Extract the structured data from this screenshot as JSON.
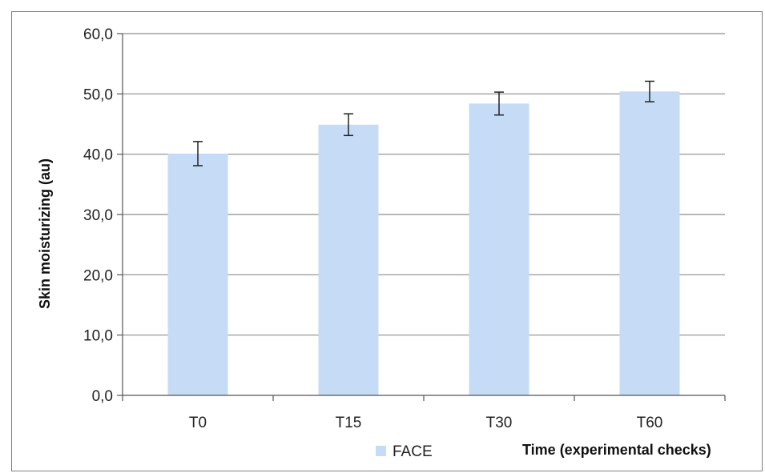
{
  "chart_data": {
    "type": "bar",
    "categories": [
      "T0",
      "T15",
      "T30",
      "T60"
    ],
    "series": [
      {
        "name": "FACE",
        "values": [
          40.1,
          44.9,
          48.4,
          50.4
        ],
        "error": [
          2.0,
          1.8,
          1.9,
          1.7
        ],
        "color": "#c6dbf5"
      }
    ],
    "ylabel": "Skin moisturizing (au)",
    "xlabel": "Time (experimental checks)",
    "ylim": [
      0,
      60
    ],
    "yticks": [
      "0,0",
      "10,0",
      "20,0",
      "30,0",
      "40,0",
      "50,0",
      "60,0"
    ],
    "grid": true,
    "legend_position": "bottom"
  }
}
